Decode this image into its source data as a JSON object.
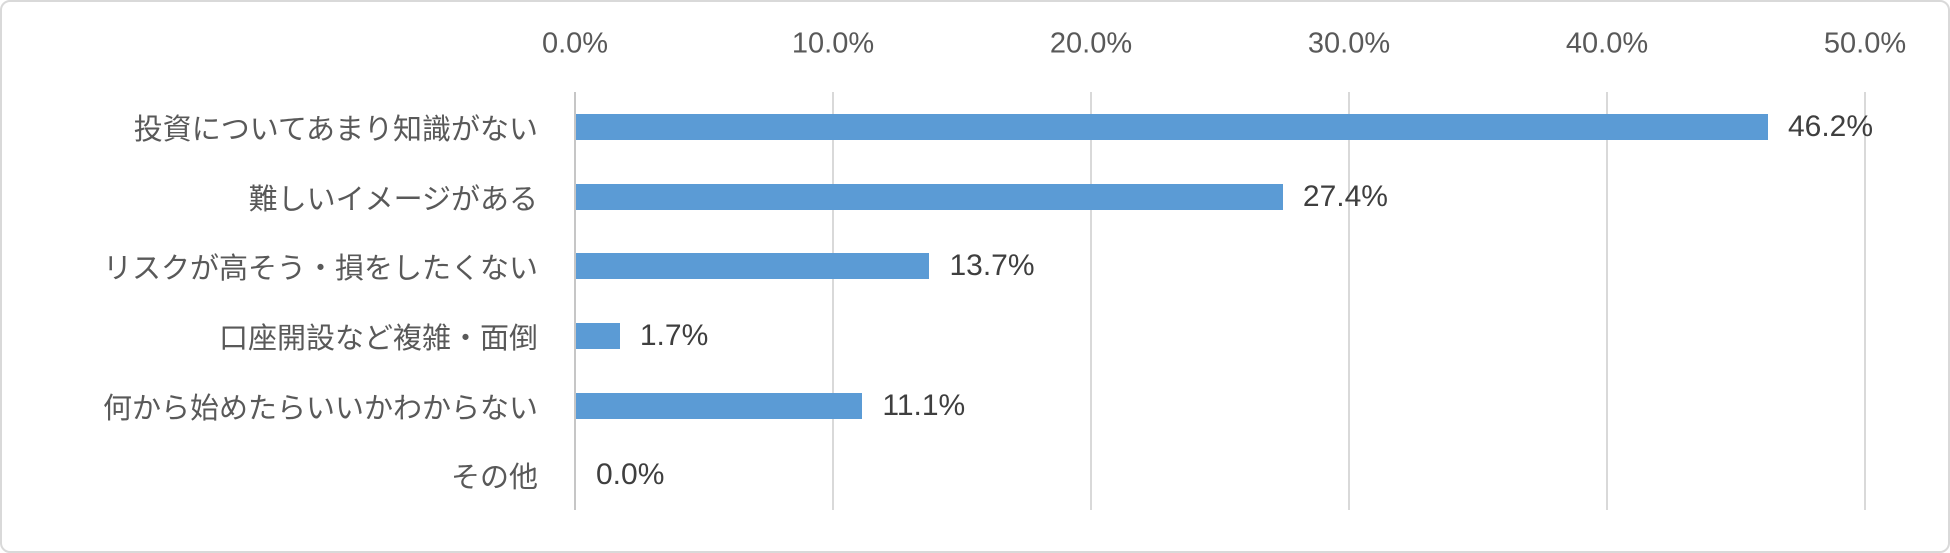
{
  "chart_data": {
    "type": "bar",
    "orientation": "horizontal",
    "title": "",
    "xlabel": "",
    "ylabel": "",
    "categories": [
      "投資についてあまり知識がない",
      "難しいイメージがある",
      "リスクが高そう・損をしたくない",
      "口座開設など複雑・面倒",
      "何から始めたらいいかわからない",
      "その他"
    ],
    "values": [
      46.2,
      27.4,
      13.7,
      1.7,
      11.1,
      0.0
    ],
    "data_labels": [
      "46.2%",
      "27.4%",
      "13.7%",
      "1.7%",
      "11.1%",
      "0.0%"
    ],
    "xlim": [
      0,
      50
    ],
    "x_ticks": [
      {
        "value": 0,
        "label": "0.0%"
      },
      {
        "value": 10,
        "label": "10.0%"
      },
      {
        "value": 20,
        "label": "20.0%"
      },
      {
        "value": 30,
        "label": "30.0%"
      },
      {
        "value": 40,
        "label": "40.0%"
      },
      {
        "value": 50,
        "label": "50.0%"
      }
    ],
    "axis_position": "top",
    "grid": true,
    "legend": false,
    "colors": {
      "bar": "#5B9BD5",
      "data_label_text": "#3F3F3F",
      "axis_text": "#595959",
      "gridline": "#D9D9D9",
      "axis_line": "#C6C6C6",
      "border": "#D9D9D9",
      "background": "#FFFFFF"
    }
  }
}
